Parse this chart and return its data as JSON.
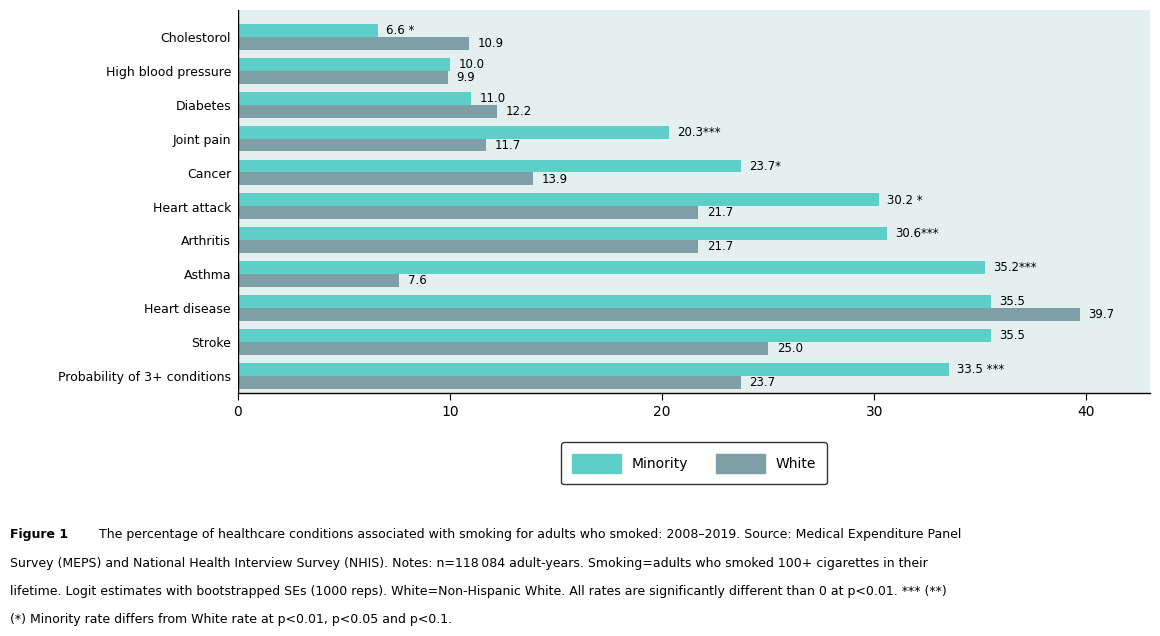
{
  "categories": [
    "Cholestorol",
    "High blood pressure",
    "Diabetes",
    "Joint pain",
    "Cancer",
    "Heart attack",
    "Arthritis",
    "Asthma",
    "Heart disease",
    "Stroke",
    "Probability of 3+ conditions"
  ],
  "minority_values": [
    6.6,
    10.0,
    11.0,
    20.3,
    23.7,
    30.2,
    30.6,
    35.2,
    35.5,
    35.5,
    33.5
  ],
  "white_values": [
    10.9,
    9.9,
    12.2,
    11.7,
    13.9,
    21.7,
    21.7,
    7.6,
    39.7,
    25.0,
    23.7
  ],
  "minority_labels": [
    "6.6 *",
    "10.0",
    "11.0",
    "20.3***",
    "23.7*",
    "30.2 *",
    "30.6***",
    "35.2***",
    "35.5",
    "35.5",
    "33.5 ***"
  ],
  "white_labels": [
    "10.9",
    "9.9",
    "12.2",
    "11.7",
    "13.9",
    "21.7",
    "21.7",
    "7.6",
    "39.7",
    "25.0",
    "23.7"
  ],
  "minority_color": "#5ecec8",
  "white_color": "#7f9fa6",
  "background_color": "#e4f0f0",
  "xlim": [
    0,
    43
  ],
  "xticks": [
    0,
    10,
    20,
    30,
    40
  ],
  "bar_height": 0.38,
  "figure_caption_bold": "Figure 1",
  "figure_caption_normal": "   The percentage of healthcare conditions associated with smoking for adults who smoked: 2008–2019. Source: Medical Expenditure Panel Survey (MEPS) and National Health Interview Survey (NHIS). Notes: n=118 084 adult-years. Smoking=adults who smoked 100+ cigarettes in their lifetime. Logit estimates with bootstrapped SEs (1000 reps). White=Non-Hispanic White. All rates are significantly different than 0 at p<0.01. *** (**) (*) Minority rate differs from White rate at p<0.01, p<0.05 and p<0.1."
}
